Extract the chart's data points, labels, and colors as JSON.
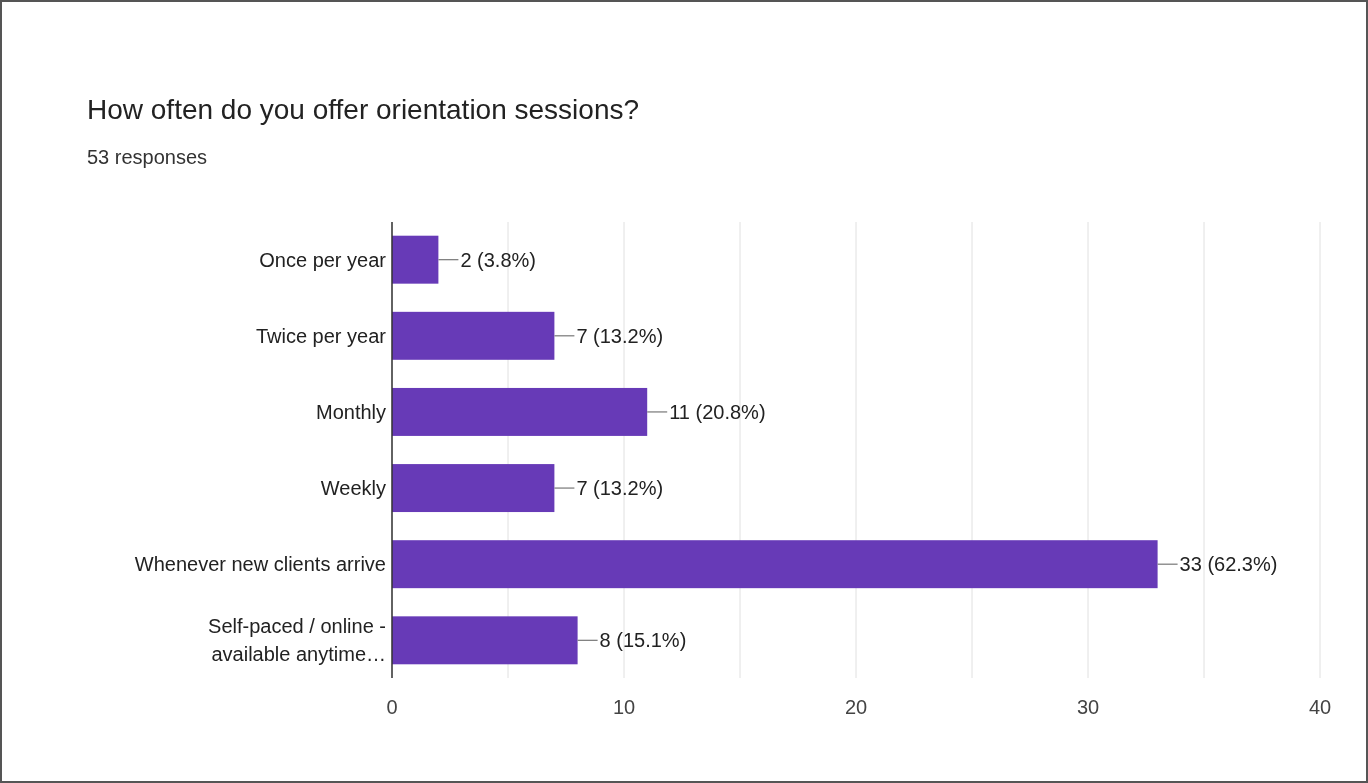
{
  "chart_data": {
    "type": "bar",
    "orientation": "horizontal",
    "title": "How often do you offer orientation sessions?",
    "subtitle": "53 responses",
    "categories": [
      "Once per year",
      "Twice per year",
      "Monthly",
      "Weekly",
      "Whenever new clients arrive",
      "Self-paced / online - available anytime…"
    ],
    "values": [
      2,
      7,
      11,
      7,
      33,
      8
    ],
    "color": "#673ab7",
    "value_labels": [
      "2 (3.8%)",
      "7 (13.2%)",
      "11 (20.8%)",
      "7 (13.2%)",
      "33 (62.3%)",
      "8 (15.1%)"
    ],
    "xlim": [
      0,
      40
    ],
    "xticks": [
      0,
      {
        "value": 5,
        "label": null
      },
      10,
      {
        "value": 15,
        "label": null
      },
      20,
      {
        "value": 25,
        "label": null
      },
      30,
      {
        "value": 35,
        "label": null
      },
      40
    ],
    "grid": "x"
  }
}
